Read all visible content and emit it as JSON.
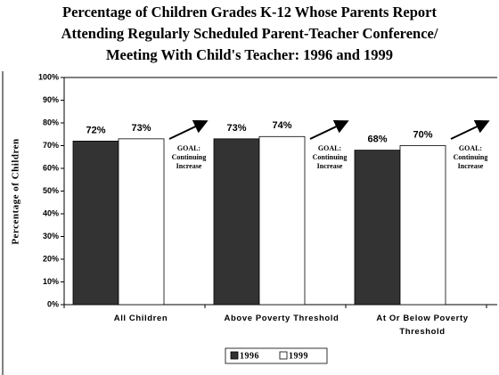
{
  "chart_data": {
    "type": "bar",
    "title": [
      "Percentage of Children Grades K-12 Whose Parents Report",
      "Attending Regularly Scheduled Parent-Teacher Conference/",
      "Meeting With Child's Teacher: 1996 and 1999"
    ],
    "y_label": "Percentage of Children",
    "categories": [
      "All Children",
      "Above Poverty Threshold",
      "At Or Below Poverty Threshold"
    ],
    "series": [
      {
        "name": "1996",
        "color": "#333333",
        "values": [
          72,
          73,
          68
        ],
        "value_labels": [
          "72%",
          "73%",
          "68%"
        ]
      },
      {
        "name": "1999",
        "color": "#ffffff",
        "values": [
          73,
          74,
          70
        ],
        "value_labels": [
          "73%",
          "74%",
          "70%"
        ]
      }
    ],
    "annotations": [
      [
        "GOAL:",
        "Continuing",
        "Increase"
      ],
      [
        "GOAL:",
        "Continuing",
        "Increase"
      ],
      [
        "GOAL:",
        "Continuing",
        "Increase"
      ]
    ],
    "ylim": [
      0,
      100
    ],
    "yticks": [
      {
        "value": 0,
        "label": "0%"
      },
      {
        "value": 10,
        "label": "10%"
      },
      {
        "value": 20,
        "label": "20%"
      },
      {
        "value": 30,
        "label": "30%"
      },
      {
        "value": 40,
        "label": "40%"
      },
      {
        "value": 50,
        "label": "50%"
      },
      {
        "value": 60,
        "label": "60%"
      },
      {
        "value": 70,
        "label": "70%"
      },
      {
        "value": 80,
        "label": "80%"
      },
      {
        "value": 90,
        "label": "90%"
      },
      {
        "value": 100,
        "label": "100%"
      }
    ],
    "legend": "bottom"
  }
}
